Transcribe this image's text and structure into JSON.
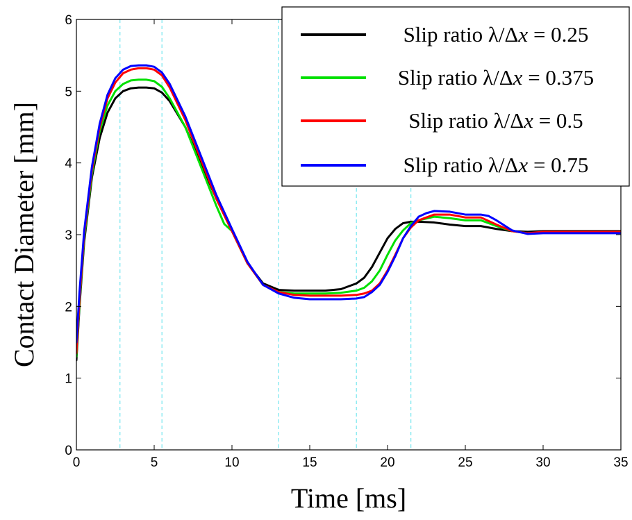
{
  "chart_data": {
    "type": "line",
    "xlabel": "Time [ms]",
    "ylabel": "Contact Diameter [mm]",
    "xlim": [
      0,
      35
    ],
    "ylim": [
      0,
      6
    ],
    "xticks": [
      "0",
      "5",
      "10",
      "15",
      "20",
      "25",
      "30",
      "35"
    ],
    "yticks": [
      "0",
      "1",
      "2",
      "3",
      "4",
      "5",
      "6"
    ],
    "grid": false,
    "legend_position": "top-right",
    "reference_lines_x": [
      2.8,
      5.5,
      13,
      18,
      21.5
    ],
    "reference_line_color": "#7fe8f0",
    "series": [
      {
        "name": "Slip ratio λ/Δx = 0.25",
        "legend_prefix": "Slip ratio λ/Δ",
        "legend_var": "x",
        "legend_suffix": " = 0.25",
        "color": "#000000",
        "x": [
          0,
          0.2,
          0.5,
          1,
          1.5,
          2,
          2.5,
          3,
          3.5,
          4,
          4.5,
          5,
          5.5,
          6,
          7,
          8,
          9,
          10,
          11,
          12,
          13,
          14,
          15,
          16,
          17,
          18,
          18.5,
          19,
          19.5,
          20,
          20.5,
          21,
          21.5,
          22,
          23,
          24,
          25,
          26,
          27,
          28,
          29,
          30,
          31,
          32,
          33,
          34,
          35
        ],
        "values": [
          1.25,
          2.0,
          2.9,
          3.8,
          4.35,
          4.7,
          4.9,
          5.0,
          5.04,
          5.05,
          5.05,
          5.04,
          4.98,
          4.86,
          4.5,
          4.0,
          3.5,
          3.05,
          2.6,
          2.32,
          2.23,
          2.22,
          2.22,
          2.22,
          2.24,
          2.32,
          2.4,
          2.55,
          2.75,
          2.95,
          3.08,
          3.16,
          3.18,
          3.18,
          3.17,
          3.14,
          3.12,
          3.12,
          3.08,
          3.05,
          3.04,
          3.05,
          3.05,
          3.05,
          3.05,
          3.05,
          3.05
        ]
      },
      {
        "name": "Slip ratio λ/Δx = 0.375",
        "legend_prefix": "Slip ratio λ/Δ",
        "legend_var": "x",
        "legend_suffix": " = 0.375",
        "color": "#00e000",
        "x": [
          0,
          0.2,
          0.5,
          1,
          1.5,
          2,
          2.5,
          3,
          3.5,
          4,
          4.5,
          5,
          5.5,
          6,
          7,
          8,
          9,
          9.5,
          10,
          11,
          12,
          13,
          14,
          15,
          16,
          17,
          18,
          18.5,
          19,
          19.5,
          20,
          20.5,
          21,
          21.5,
          22,
          23,
          24,
          25,
          26,
          27,
          28,
          29,
          30,
          31,
          32,
          33,
          34,
          35
        ],
        "values": [
          1.3,
          2.05,
          2.95,
          3.85,
          4.45,
          4.8,
          5.0,
          5.1,
          5.15,
          5.16,
          5.16,
          5.14,
          5.06,
          4.9,
          4.5,
          3.95,
          3.4,
          3.15,
          3.05,
          2.6,
          2.3,
          2.2,
          2.18,
          2.18,
          2.18,
          2.19,
          2.22,
          2.26,
          2.35,
          2.5,
          2.72,
          2.92,
          3.06,
          3.16,
          3.2,
          3.25,
          3.23,
          3.2,
          3.2,
          3.12,
          3.05,
          3.02,
          3.03,
          3.03,
          3.03,
          3.03,
          3.03,
          3.03
        ]
      },
      {
        "name": "Slip ratio λ/Δx = 0.5",
        "legend_prefix": "Slip ratio λ/Δ",
        "legend_var": "x",
        "legend_suffix": " = 0.5",
        "color": "#ff0000",
        "x": [
          0,
          0.2,
          0.5,
          1,
          1.5,
          2,
          2.5,
          3,
          3.5,
          4,
          4.5,
          5,
          5.5,
          6,
          7,
          8,
          9,
          10,
          11,
          12,
          13,
          14,
          15,
          16,
          17,
          18,
          18.5,
          19,
          19.5,
          20,
          20.5,
          21,
          21.5,
          22,
          23,
          24,
          25,
          26,
          27,
          28,
          29,
          30,
          31,
          32,
          33,
          34,
          35
        ],
        "values": [
          1.35,
          2.1,
          3.0,
          3.9,
          4.5,
          4.9,
          5.12,
          5.25,
          5.3,
          5.32,
          5.32,
          5.3,
          5.22,
          5.05,
          4.6,
          4.05,
          3.5,
          3.05,
          2.6,
          2.3,
          2.2,
          2.16,
          2.15,
          2.15,
          2.15,
          2.16,
          2.18,
          2.22,
          2.32,
          2.5,
          2.72,
          2.95,
          3.1,
          3.2,
          3.28,
          3.28,
          3.24,
          3.24,
          3.14,
          3.05,
          3.02,
          3.04,
          3.04,
          3.04,
          3.04,
          3.04,
          3.04
        ]
      },
      {
        "name": "Slip ratio λ/Δx = 0.75",
        "legend_prefix": "Slip ratio λ/Δ",
        "legend_var": "x",
        "legend_suffix": " = 0.75",
        "color": "#0000ff",
        "x": [
          0,
          0.2,
          0.5,
          1,
          1.5,
          2,
          2.5,
          3,
          3.5,
          4,
          4.5,
          5,
          5.5,
          6,
          7,
          8,
          9,
          10,
          11,
          12,
          13,
          14,
          15,
          16,
          17,
          18,
          18.5,
          19,
          19.5,
          20,
          20.5,
          21,
          21.5,
          22,
          22.5,
          23,
          24,
          25,
          26,
          26.5,
          27,
          28,
          29,
          30,
          31,
          32,
          33,
          34,
          35
        ],
        "values": [
          1.5,
          2.2,
          3.05,
          3.95,
          4.55,
          4.95,
          5.18,
          5.3,
          5.35,
          5.36,
          5.36,
          5.34,
          5.26,
          5.1,
          4.65,
          4.1,
          3.55,
          3.08,
          2.62,
          2.3,
          2.18,
          2.12,
          2.1,
          2.1,
          2.1,
          2.11,
          2.13,
          2.2,
          2.3,
          2.48,
          2.7,
          2.95,
          3.12,
          3.25,
          3.3,
          3.33,
          3.32,
          3.28,
          3.28,
          3.26,
          3.2,
          3.06,
          3.01,
          3.02,
          3.02,
          3.02,
          3.02,
          3.02,
          3.02
        ]
      }
    ]
  }
}
